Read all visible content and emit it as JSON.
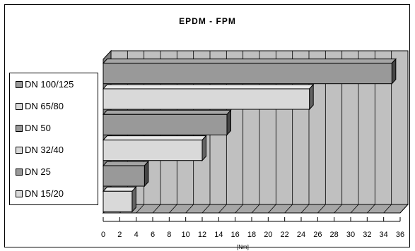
{
  "chart_data": {
    "type": "bar",
    "orientation": "horizontal",
    "title": "EPDM - FPM",
    "xlabel": "[Nm]",
    "ylabel": "",
    "categories": [
      "DN 100/125",
      "DN 65/80",
      "DN 50",
      "DN 32/40",
      "DN 25",
      "DN 15/20"
    ],
    "values": [
      35,
      25,
      15,
      12,
      5,
      3.5
    ],
    "xlim": [
      0,
      36
    ],
    "x_ticks": [
      "0",
      "2",
      "4",
      "6",
      "8",
      "10",
      "12",
      "14",
      "16",
      "18",
      "20",
      "22",
      "24",
      "26",
      "28",
      "30",
      "32",
      "34",
      "36"
    ],
    "grid": true,
    "three_d": true,
    "legend_placement": "left",
    "colors": {
      "dark_bar": "#999999",
      "light_bar": "#d9d9d9",
      "wall": "#c0c0c0",
      "floor": "#a6a6a6"
    },
    "bar_shades": [
      "dark",
      "light",
      "dark",
      "light",
      "dark",
      "light"
    ]
  }
}
